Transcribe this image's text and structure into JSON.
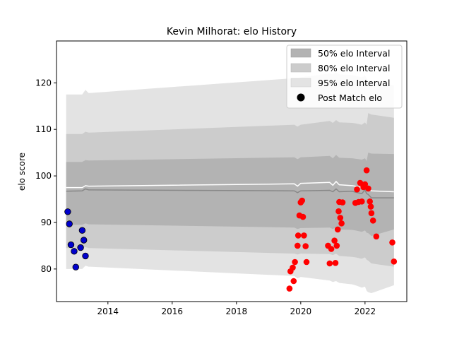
{
  "chart_data": {
    "type": "scatter",
    "title": "Kevin Milhorat: elo History",
    "xlabel": "",
    "ylabel": "elo score",
    "xlim": [
      2012.4,
      2023.3
    ],
    "ylim": [
      73,
      129
    ],
    "xticks": [
      2014,
      2016,
      2018,
      2020,
      2022
    ],
    "yticks": [
      80,
      90,
      100,
      110,
      120
    ],
    "grid": false,
    "legend": {
      "placement": "top-right",
      "entries": [
        "50% elo Interval",
        "80% elo Interval",
        "95% elo Interval",
        "Post Match elo"
      ]
    },
    "colors": {
      "band50": "#b3b3b3",
      "band80": "#cccccc",
      "band95": "#e3e3e3",
      "median_line": "#888888",
      "mean_line": "#ffffff",
      "early_points": "#0000cc",
      "recent_points": "#ff0000"
    },
    "intervals": {
      "x": [
        2012.7,
        2013.2,
        2013.3,
        2013.4,
        2019.8,
        2019.9,
        2020.0,
        2020.9,
        2021.0,
        2021.1,
        2021.2,
        2021.6,
        2021.7,
        2021.9,
        2022.0,
        2022.05,
        2022.1,
        2022.2,
        2022.9
      ],
      "median": [
        96.7,
        96.8,
        97.2,
        97.0,
        96.8,
        96.4,
        96.8,
        96.9,
        96.6,
        97.2,
        96.6,
        96.7,
        96.5,
        96.2,
        97.0,
        96.2,
        96.0,
        95.3,
        95.3
      ],
      "mean": [
        97.5,
        97.5,
        97.9,
        97.8,
        98.3,
        97.8,
        98.4,
        98.6,
        98.0,
        98.8,
        98.1,
        97.9,
        97.8,
        97.5,
        97.9,
        97.1,
        97.3,
        96.8,
        96.6
      ],
      "lo50": [
        89.5,
        89.5,
        89.8,
        89.6,
        88.9,
        88.6,
        88.8,
        88.9,
        88.6,
        89.0,
        88.5,
        88.4,
        88.3,
        88.0,
        88.3,
        87.8,
        87.7,
        87.1,
        88.5
      ],
      "hi50": [
        103.0,
        103.0,
        103.4,
        103.3,
        104.0,
        103.6,
        104.0,
        104.3,
        103.8,
        104.5,
        103.9,
        103.8,
        103.7,
        103.5,
        103.8,
        103.2,
        105.0,
        104.8,
        104.7
      ],
      "lo80": [
        84.5,
        84.5,
        84.7,
        84.5,
        83.3,
        83.1,
        83.3,
        83.2,
        83.0,
        83.3,
        82.8,
        82.6,
        82.5,
        82.2,
        82.5,
        82.0,
        81.8,
        81.2,
        80.5
      ],
      "hi80": [
        109.0,
        109.0,
        109.5,
        109.3,
        111.0,
        110.6,
        111.0,
        111.8,
        111.4,
        112.0,
        111.5,
        111.4,
        111.3,
        111.0,
        111.5,
        111.0,
        113.5,
        113.2,
        112.5
      ],
      "lo95": [
        80.0,
        80.0,
        80.7,
        80.5,
        78.5,
        78.0,
        78.3,
        77.5,
        77.2,
        77.4,
        77.0,
        76.7,
        76.5,
        76.0,
        76.2,
        75.3,
        75.0,
        74.8,
        76.5
      ],
      "hi95": [
        117.5,
        117.5,
        118.5,
        117.8,
        121.0,
        120.8,
        121.2,
        122.0,
        121.8,
        122.2,
        121.8,
        121.7,
        121.5,
        121.2,
        121.6,
        121.0,
        120.5,
        120.0,
        119.5
      ]
    },
    "series": [
      {
        "name": "Post Match elo",
        "color": "#0000cc",
        "points": [
          [
            2012.75,
            92.3
          ],
          [
            2012.8,
            89.7
          ],
          [
            2012.85,
            85.2
          ],
          [
            2012.95,
            83.8
          ],
          [
            2013.0,
            80.4
          ],
          [
            2013.15,
            84.6
          ],
          [
            2013.2,
            88.3
          ],
          [
            2013.25,
            86.2
          ],
          [
            2013.3,
            82.8
          ]
        ]
      },
      {
        "name": "Post Match elo",
        "color": "#ff0000",
        "points": [
          [
            2019.65,
            75.8
          ],
          [
            2019.68,
            79.5
          ],
          [
            2019.75,
            80.3
          ],
          [
            2019.78,
            77.4
          ],
          [
            2019.82,
            81.5
          ],
          [
            2019.9,
            85.0
          ],
          [
            2019.92,
            87.2
          ],
          [
            2019.96,
            91.5
          ],
          [
            2020.0,
            94.3
          ],
          [
            2020.04,
            94.7
          ],
          [
            2020.07,
            91.2
          ],
          [
            2020.1,
            87.2
          ],
          [
            2020.15,
            84.9
          ],
          [
            2020.18,
            81.5
          ],
          [
            2020.85,
            85.0
          ],
          [
            2020.9,
            81.2
          ],
          [
            2020.95,
            84.3
          ],
          [
            2021.05,
            86.1
          ],
          [
            2021.08,
            81.3
          ],
          [
            2021.12,
            85.0
          ],
          [
            2021.15,
            88.5
          ],
          [
            2021.18,
            92.4
          ],
          [
            2021.2,
            94.4
          ],
          [
            2021.23,
            91.0
          ],
          [
            2021.27,
            89.8
          ],
          [
            2021.3,
            94.3
          ],
          [
            2021.7,
            94.2
          ],
          [
            2021.75,
            97.1
          ],
          [
            2021.8,
            94.4
          ],
          [
            2021.85,
            98.5
          ],
          [
            2021.9,
            94.5
          ],
          [
            2021.95,
            97.6
          ],
          [
            2022.0,
            98.2
          ],
          [
            2022.05,
            101.2
          ],
          [
            2022.1,
            97.3
          ],
          [
            2022.15,
            94.5
          ],
          [
            2022.18,
            93.4
          ],
          [
            2022.2,
            92.0
          ],
          [
            2022.25,
            90.4
          ],
          [
            2022.35,
            87.0
          ],
          [
            2022.85,
            85.7
          ],
          [
            2022.9,
            81.6
          ]
        ]
      }
    ]
  }
}
